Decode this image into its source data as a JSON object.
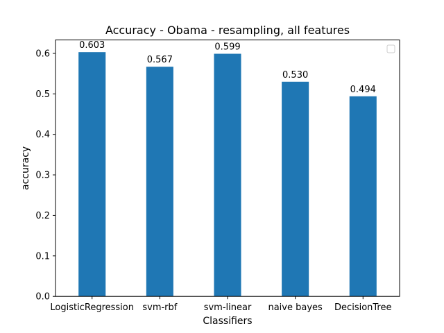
{
  "chart_data": {
    "type": "bar",
    "title": "Accuracy - Obama - resampling, all features",
    "xlabel": "Classifiers",
    "ylabel": "accuracy",
    "categories": [
      "LogisticRegression",
      "svm-rbf",
      "svm-linear",
      "naive bayes",
      "DecisionTree"
    ],
    "values": [
      0.603,
      0.567,
      0.599,
      0.53,
      0.494
    ],
    "value_labels": [
      "0.603",
      "0.567",
      "0.599",
      "0.530",
      "0.494"
    ],
    "yticks": [
      "0.0",
      "0.1",
      "0.2",
      "0.3",
      "0.4",
      "0.5",
      "0.6"
    ],
    "ylim": [
      0,
      0.6
    ],
    "bar_color": "#1f77b4",
    "grid": false,
    "legend": {
      "position": "top-right",
      "entries": []
    }
  }
}
